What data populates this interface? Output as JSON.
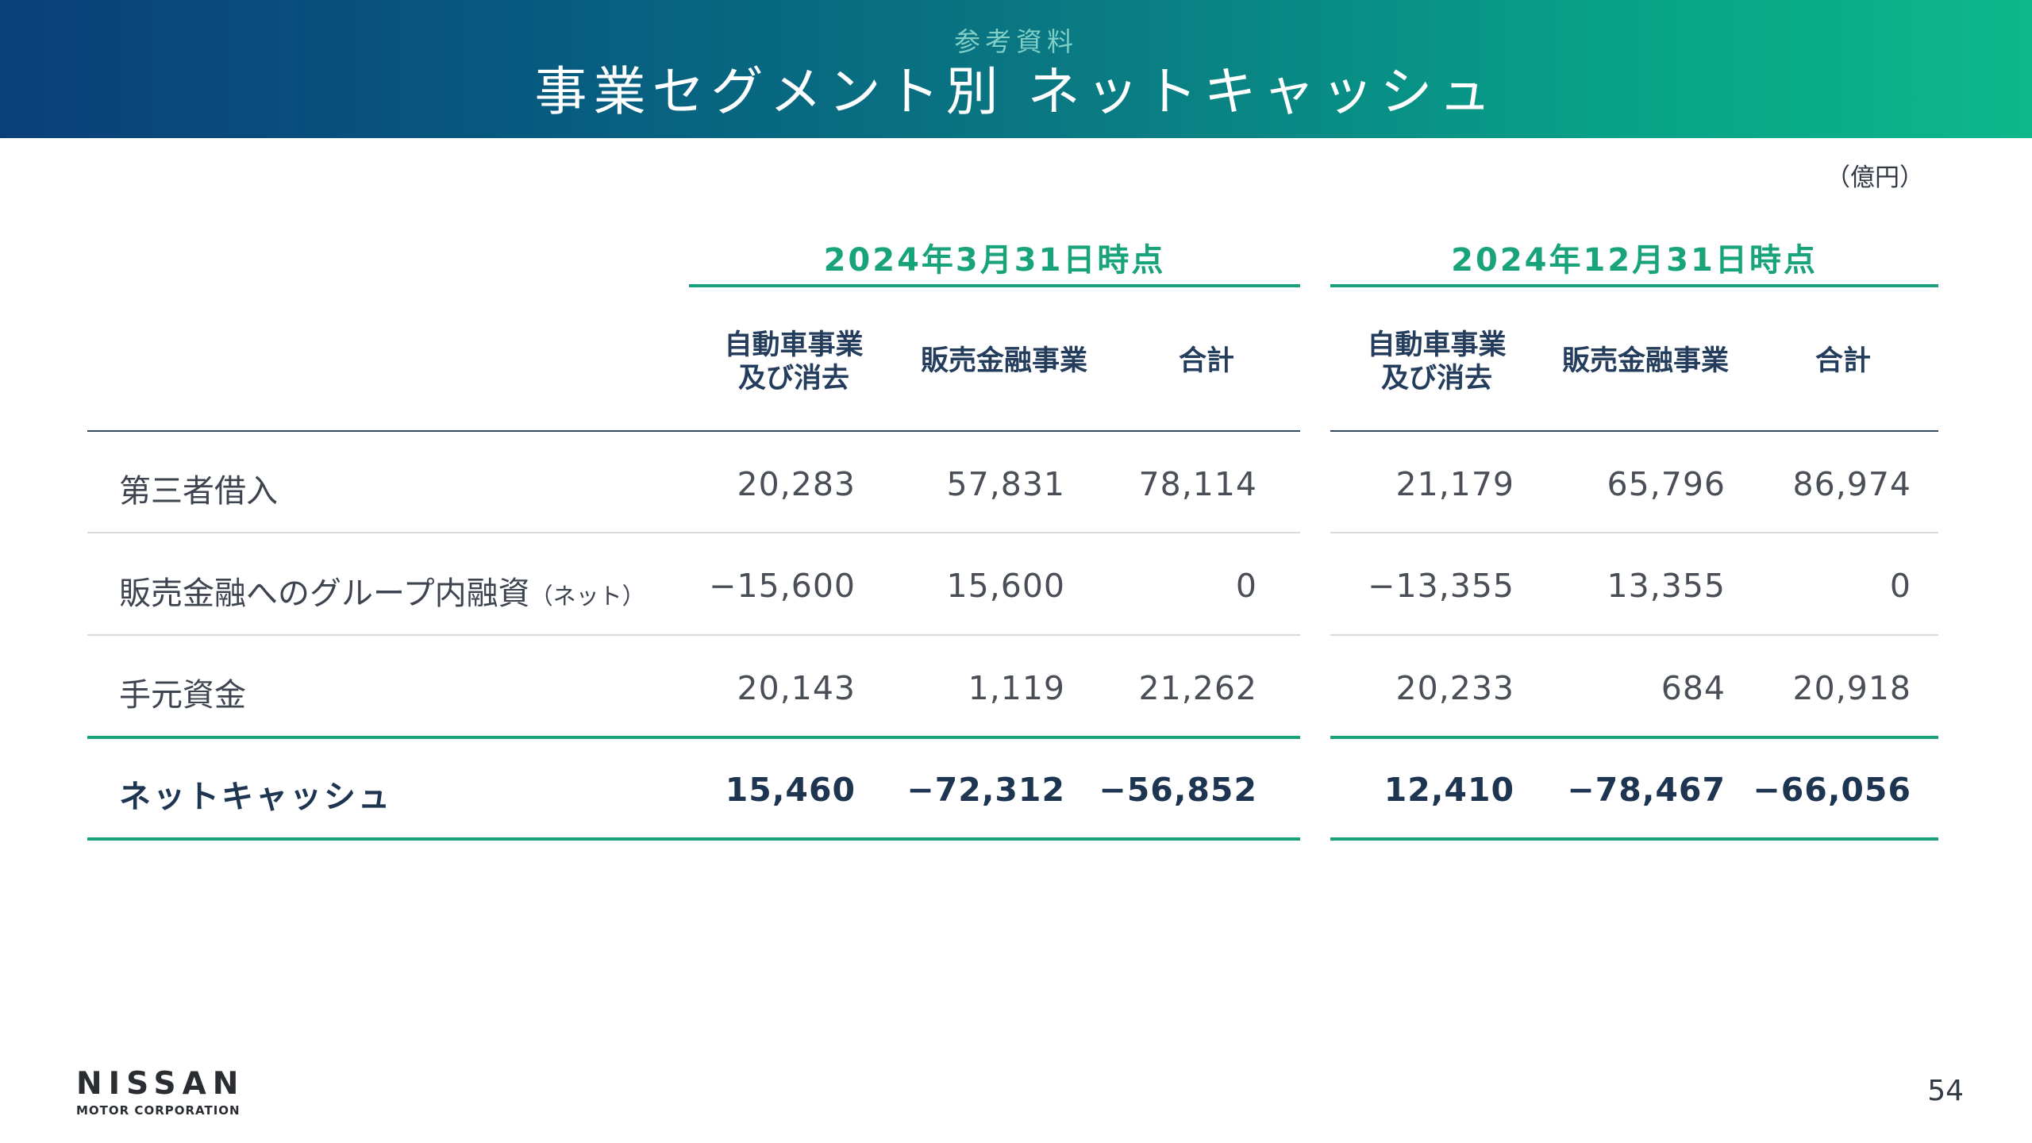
{
  "header": {
    "subtitle": "参考資料",
    "title": "事業セグメント別 ネットキャッシュ"
  },
  "unit": "（億円）",
  "periods": [
    {
      "label": "2024年3月31日時点",
      "columns": [
        "自動車事業\n及び消去",
        "販売金融事業",
        "合計"
      ]
    },
    {
      "label": "2024年12月31日時点",
      "columns": [
        "自動車事業\n及び消去",
        "販売金融事業",
        "合計"
      ]
    }
  ],
  "rows": [
    {
      "label": "第三者借入",
      "label_suffix": "",
      "values": [
        "20,283",
        "57,831",
        "78,114",
        "21,179",
        "65,796",
        "86,974"
      ]
    },
    {
      "label": "販売金融へのグループ内融資",
      "label_suffix": "（ネット）",
      "values": [
        "−15,600",
        "15,600",
        "0",
        "−13,355",
        "13,355",
        "0"
      ]
    },
    {
      "label": "手元資金",
      "label_suffix": "",
      "values": [
        "20,143",
        "1,119",
        "21,262",
        "20,233",
        "684",
        "20,918"
      ]
    },
    {
      "label": "ネットキャッシュ",
      "label_suffix": "",
      "values": [
        "15,460",
        "−72,312",
        "−56,852",
        "12,410",
        "−78,467",
        "−66,056"
      ]
    }
  ],
  "footer": {
    "logo_main": "NISSAN",
    "logo_sub": "MOTOR CORPORATION",
    "page_number": "54"
  },
  "colors": {
    "accent": "#1aa07c",
    "navy": "#1e3552",
    "banner_start": "#0b3f78",
    "banner_end": "#0fb78a"
  }
}
